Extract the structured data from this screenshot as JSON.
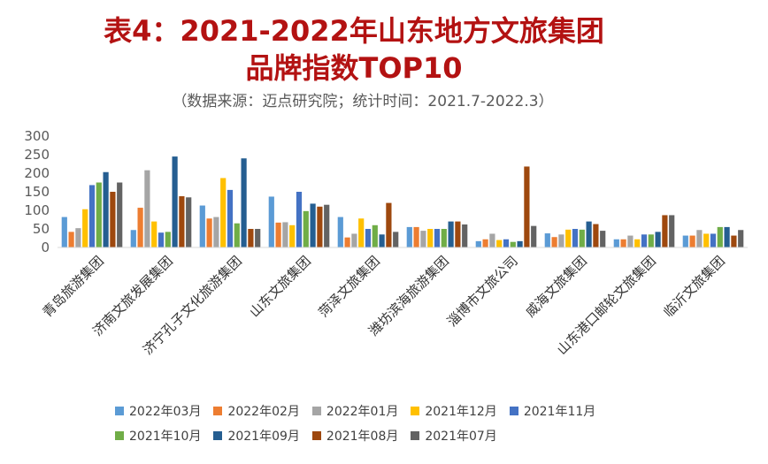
{
  "title_line1": "表4：2021-2022年山东地方文旅集团",
  "title_line2": "品牌指数TOP10",
  "subtitle": "（数据来源：迈点研究院；统计时间：2021.7-2022.3）",
  "chart_data": {
    "type": "bar",
    "ylim": [
      0,
      300
    ],
    "yticks": [
      0,
      50,
      100,
      150,
      200,
      250,
      300
    ],
    "categories": [
      "青岛旅游集团",
      "济南文旅发展集团",
      "济宁孔子文化旅游集团",
      "山东文旅集团",
      "菏泽文旅集团",
      "潍坊滨海旅游集团",
      "淄博市文旅公司",
      "威海文旅集团",
      "山东港口邮轮文旅集团",
      "临沂文旅集团"
    ],
    "legend_position": "bottom",
    "series": [
      {
        "name": "2022年03月",
        "color": "#5b9bd5",
        "values": [
          82,
          47,
          113,
          137,
          82,
          55,
          17,
          38,
          22,
          32
        ]
      },
      {
        "name": "2022年02月",
        "color": "#ed7d31",
        "values": [
          42,
          107,
          78,
          67,
          27,
          55,
          22,
          28,
          22,
          32
        ]
      },
      {
        "name": "2022年01月",
        "color": "#a5a5a5",
        "values": [
          52,
          208,
          82,
          68,
          37,
          45,
          37,
          35,
          32,
          47
        ]
      },
      {
        "name": "2021年12月",
        "color": "#ffc000",
        "values": [
          103,
          70,
          187,
          60,
          78,
          50,
          20,
          48,
          22,
          37
        ]
      },
      {
        "name": "2021年11月",
        "color": "#4472c4",
        "values": [
          168,
          40,
          155,
          150,
          50,
          50,
          22,
          50,
          35,
          37
        ]
      },
      {
        "name": "2021年10月",
        "color": "#70ad47",
        "values": [
          175,
          42,
          65,
          98,
          60,
          50,
          15,
          48,
          35,
          55
        ]
      },
      {
        "name": "2021年09月",
        "color": "#255e91",
        "values": [
          203,
          245,
          240,
          118,
          35,
          70,
          17,
          70,
          42,
          55
        ]
      },
      {
        "name": "2021年08月",
        "color": "#9e480e",
        "values": [
          150,
          138,
          50,
          110,
          120,
          70,
          218,
          63,
          87,
          32
        ]
      },
      {
        "name": "2021年07月",
        "color": "#636363",
        "values": [
          175,
          135,
          50,
          115,
          42,
          62,
          58,
          45,
          87,
          47
        ]
      }
    ]
  }
}
